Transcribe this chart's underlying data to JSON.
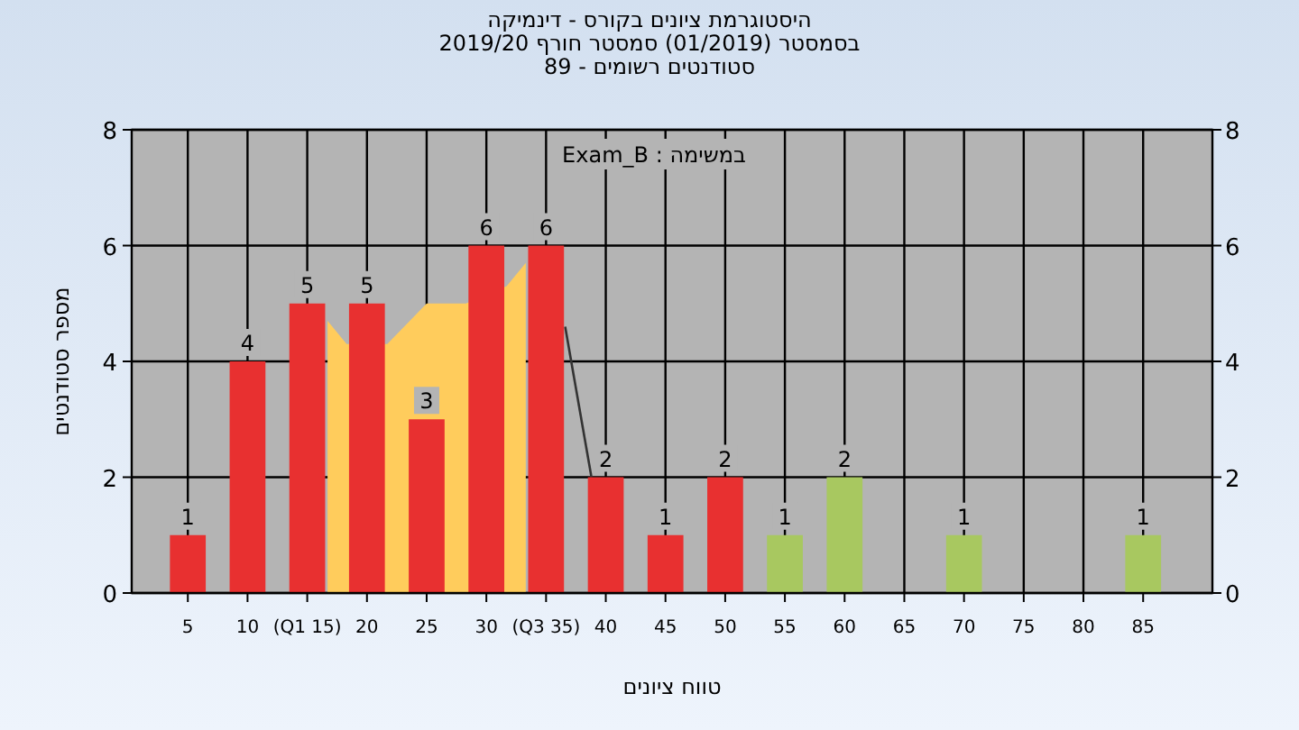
{
  "chart_data": {
    "type": "bar",
    "title": "היסטוגרמת ציונים בקורס - דינמיקה",
    "subtitle": "בסמסטר  (01/2019)  סמסטר חורף 2019/20\nסטודנטים רשומים - 89",
    "xlabel": "טווח ציונים",
    "ylabel": "מספר סטודנטים",
    "annotations": [
      "במשימה : Exam_B"
    ],
    "x": [
      5,
      10,
      15,
      20,
      25,
      30,
      35,
      40,
      45,
      50,
      55,
      60,
      65,
      70,
      75,
      80,
      85
    ],
    "xlim": [
      0.3,
      90.8
    ],
    "xticks": [
      5,
      10,
      {
        "value": 15,
        "label": "(Q1 15)"
      },
      20,
      25,
      30,
      {
        "value": 35,
        "label": "(Q3 35)"
      },
      40,
      45,
      50,
      55,
      60,
      65,
      70,
      75,
      80,
      85
    ],
    "series": [
      {
        "type": "area",
        "color": "#ffcc5c",
        "x": [
          16.7,
          18.3,
          21.7,
          25,
          28.3,
          31.7,
          33.3
        ],
        "values": [
          4.7,
          4.3,
          4.3,
          5,
          5,
          5.3,
          5.7
        ]
      },
      {
        "type": "line",
        "color": "#333333",
        "x": [
          36.6,
          38.8
        ],
        "values": [
          4.6,
          2
        ]
      },
      {
        "colors": [
          "#e83030",
          "#e83030",
          "#e83030",
          "#e83030",
          "#e83030",
          "#e83030",
          "#e83030",
          "#e83030",
          "#e83030",
          "#e83030",
          "#a8c860",
          "#a8c860",
          "#a8c860",
          "#a8c860",
          "#a8c860",
          "#a8c860",
          "#a8c860"
        ],
        "values": [
          1,
          4,
          5,
          5,
          3,
          6,
          6,
          2,
          1,
          2,
          1,
          2,
          0,
          1,
          0,
          0,
          1
        ],
        "value_labels": [
          "1",
          "4",
          "5",
          "5",
          "3",
          "6",
          "6",
          "2",
          "1",
          "2",
          "1",
          "2",
          null,
          "1",
          null,
          null,
          "1"
        ]
      }
    ],
    "ylim": [
      0,
      8
    ],
    "yticks": [
      0,
      2,
      4,
      6,
      8
    ],
    "y2lim": [
      0,
      8
    ],
    "y2ticks": [
      0,
      2,
      4,
      6,
      8
    ],
    "grid": true
  }
}
